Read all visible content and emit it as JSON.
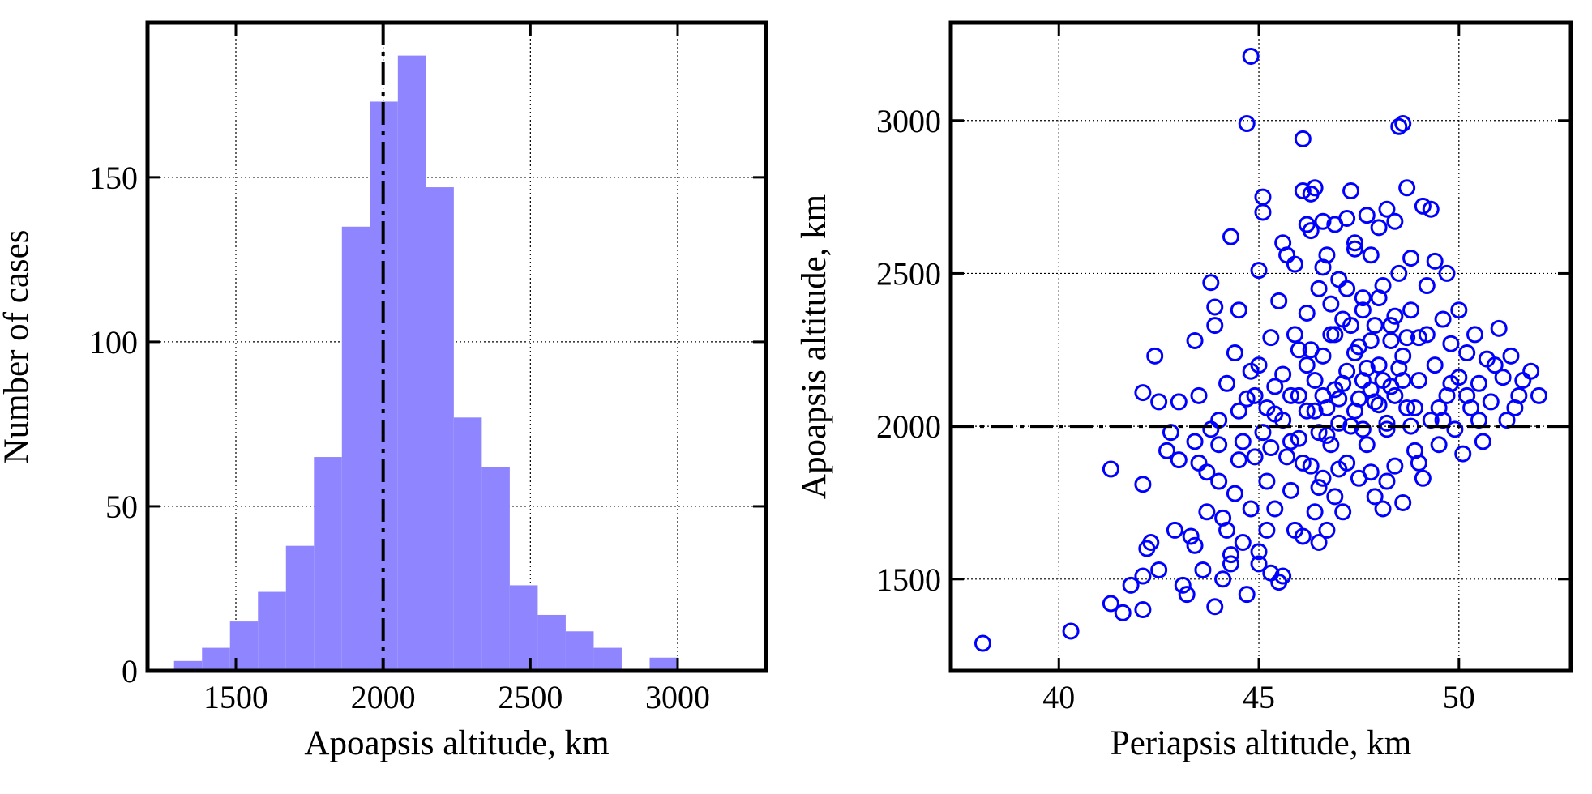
{
  "chart_data": [
    {
      "type": "bar",
      "subtype": "histogram",
      "xlabel": "Apoapsis altitude, km",
      "ylabel": "Number of cases",
      "xlim": [
        1200,
        3300
      ],
      "ylim": [
        0,
        197
      ],
      "xticks": [
        1500,
        2000,
        2500,
        3000
      ],
      "yticks": [
        0,
        50,
        100,
        150
      ],
      "grid": true,
      "bar_color": "#8f86ff",
      "reference_line": {
        "axis": "x",
        "value": 2000,
        "style": "dash-dot",
        "color": "#000000"
      },
      "bins": [
        {
          "x0": 1290,
          "x1": 1385,
          "count": 3
        },
        {
          "x0": 1385,
          "x1": 1480,
          "count": 7
        },
        {
          "x0": 1480,
          "x1": 1575,
          "count": 15
        },
        {
          "x0": 1575,
          "x1": 1670,
          "count": 24
        },
        {
          "x0": 1670,
          "x1": 1765,
          "count": 38
        },
        {
          "x0": 1765,
          "x1": 1860,
          "count": 65
        },
        {
          "x0": 1860,
          "x1": 1955,
          "count": 135
        },
        {
          "x0": 1955,
          "x1": 2050,
          "count": 173
        },
        {
          "x0": 2050,
          "x1": 2145,
          "count": 187
        },
        {
          "x0": 2145,
          "x1": 2240,
          "count": 147
        },
        {
          "x0": 2240,
          "x1": 2335,
          "count": 77
        },
        {
          "x0": 2335,
          "x1": 2430,
          "count": 62
        },
        {
          "x0": 2430,
          "x1": 2525,
          "count": 26
        },
        {
          "x0": 2525,
          "x1": 2620,
          "count": 17
        },
        {
          "x0": 2620,
          "x1": 2715,
          "count": 12
        },
        {
          "x0": 2715,
          "x1": 2810,
          "count": 7
        },
        {
          "x0": 2810,
          "x1": 2905,
          "count": 0
        },
        {
          "x0": 2905,
          "x1": 3000,
          "count": 4
        }
      ]
    },
    {
      "type": "scatter",
      "xlabel": "Periapsis altitude, km",
      "ylabel": "Apoapsis altitude, km",
      "xlim": [
        37.3,
        52.8
      ],
      "ylim": [
        1200,
        3320
      ],
      "xticks": [
        40,
        45,
        50
      ],
      "yticks": [
        1500,
        2000,
        2500,
        3000
      ],
      "grid": true,
      "marker": "open-circle",
      "marker_color": "#0000ff",
      "reference_line": {
        "axis": "y",
        "value": 2000,
        "style": "dash-dot",
        "color": "#000000"
      },
      "points": [
        [
          38.1,
          1290
        ],
        [
          40.3,
          1330
        ],
        [
          41.3,
          1860
        ],
        [
          41.3,
          1420
        ],
        [
          41.6,
          1390
        ],
        [
          41.8,
          1480
        ],
        [
          42.1,
          1400
        ],
        [
          42.1,
          1510
        ],
        [
          42.1,
          1810
        ],
        [
          42.1,
          2110
        ],
        [
          42.2,
          1600
        ],
        [
          42.3,
          1620
        ],
        [
          42.5,
          1530
        ],
        [
          42.4,
          2230
        ],
        [
          42.5,
          2080
        ],
        [
          42.7,
          1920
        ],
        [
          42.8,
          1980
        ],
        [
          42.9,
          1660
        ],
        [
          43.0,
          2080
        ],
        [
          43.0,
          1890
        ],
        [
          43.1,
          1480
        ],
        [
          43.2,
          1450
        ],
        [
          43.3,
          1640
        ],
        [
          43.4,
          1950
        ],
        [
          43.4,
          1610
        ],
        [
          43.4,
          2280
        ],
        [
          43.5,
          1880
        ],
        [
          43.5,
          2100
        ],
        [
          43.6,
          1530
        ],
        [
          43.7,
          1850
        ],
        [
          43.7,
          1720
        ],
        [
          43.8,
          1990
        ],
        [
          43.8,
          2470
        ],
        [
          43.9,
          1410
        ],
        [
          43.9,
          2390
        ],
        [
          43.9,
          2330
        ],
        [
          44.0,
          1940
        ],
        [
          44.0,
          1820
        ],
        [
          44.0,
          2020
        ],
        [
          44.1,
          1700
        ],
        [
          44.1,
          1500
        ],
        [
          44.2,
          1660
        ],
        [
          44.2,
          2140
        ],
        [
          44.3,
          1580
        ],
        [
          44.3,
          1550
        ],
        [
          44.3,
          2620
        ],
        [
          44.4,
          2240
        ],
        [
          44.4,
          1780
        ],
        [
          44.5,
          1890
        ],
        [
          44.5,
          2380
        ],
        [
          44.5,
          2050
        ],
        [
          44.6,
          1620
        ],
        [
          44.6,
          1950
        ],
        [
          44.7,
          1450
        ],
        [
          44.7,
          2990
        ],
        [
          44.8,
          1730
        ],
        [
          44.8,
          2180
        ],
        [
          44.8,
          3210
        ],
        [
          44.9,
          2100
        ],
        [
          45.0,
          1550
        ],
        [
          45.0,
          1590
        ],
        [
          45.0,
          2510
        ],
        [
          45.1,
          2750
        ],
        [
          45.1,
          2700
        ],
        [
          45.1,
          1980
        ],
        [
          45.2,
          1820
        ],
        [
          45.2,
          1660
        ],
        [
          45.3,
          2290
        ],
        [
          45.3,
          1520
        ],
        [
          45.4,
          1730
        ],
        [
          45.4,
          2040
        ],
        [
          45.5,
          1490
        ],
        [
          45.5,
          2410
        ],
        [
          45.6,
          2170
        ],
        [
          45.6,
          2600
        ],
        [
          45.6,
          1510
        ],
        [
          45.7,
          2560
        ],
        [
          45.7,
          1900
        ],
        [
          45.8,
          1790
        ],
        [
          45.8,
          2100
        ],
        [
          45.9,
          2530
        ],
        [
          45.9,
          1660
        ],
        [
          46.0,
          2250
        ],
        [
          46.0,
          1960
        ],
        [
          46.1,
          2940
        ],
        [
          46.1,
          2770
        ],
        [
          46.1,
          1640
        ],
        [
          46.2,
          2660
        ],
        [
          46.2,
          2370
        ],
        [
          46.2,
          2050
        ],
        [
          46.3,
          2760
        ],
        [
          46.3,
          2640
        ],
        [
          46.3,
          1870
        ],
        [
          46.4,
          2780
        ],
        [
          46.4,
          2150
        ],
        [
          46.4,
          1720
        ],
        [
          46.5,
          2450
        ],
        [
          46.5,
          1980
        ],
        [
          46.5,
          1620
        ],
        [
          46.6,
          2670
        ],
        [
          46.6,
          2230
        ],
        [
          46.6,
          1830
        ],
        [
          46.7,
          2560
        ],
        [
          46.7,
          2060
        ],
        [
          46.7,
          1660
        ],
        [
          46.8,
          2300
        ],
        [
          46.8,
          1940
        ],
        [
          46.9,
          2660
        ],
        [
          46.9,
          2120
        ],
        [
          46.9,
          1770
        ],
        [
          47.0,
          2480
        ],
        [
          47.0,
          2010
        ],
        [
          47.1,
          1720
        ],
        [
          47.1,
          2350
        ],
        [
          47.2,
          2680
        ],
        [
          47.2,
          2180
        ],
        [
          47.2,
          1880
        ],
        [
          47.3,
          2770
        ],
        [
          47.3,
          2000
        ],
        [
          47.4,
          2580
        ],
        [
          47.4,
          2240
        ],
        [
          47.5,
          2090
        ],
        [
          47.5,
          1830
        ],
        [
          47.6,
          2420
        ],
        [
          47.6,
          2150
        ],
        [
          47.7,
          2690
        ],
        [
          47.7,
          1940
        ],
        [
          47.8,
          2560
        ],
        [
          47.8,
          2280
        ],
        [
          47.9,
          1770
        ],
        [
          47.9,
          2080
        ],
        [
          48.0,
          2650
        ],
        [
          48.0,
          2200
        ],
        [
          48.1,
          1730
        ],
        [
          48.1,
          2460
        ],
        [
          48.2,
          2710
        ],
        [
          48.2,
          1990
        ],
        [
          48.3,
          2330
        ],
        [
          48.3,
          2130
        ],
        [
          48.4,
          2670
        ],
        [
          48.4,
          1870
        ],
        [
          48.5,
          2980
        ],
        [
          48.5,
          2500
        ],
        [
          48.6,
          2990
        ],
        [
          48.6,
          1750
        ],
        [
          48.6,
          2230
        ],
        [
          48.7,
          2780
        ],
        [
          48.7,
          2060
        ],
        [
          48.8,
          2550
        ],
        [
          48.8,
          2380
        ],
        [
          48.9,
          1920
        ],
        [
          49.0,
          2290
        ],
        [
          49.0,
          2150
        ],
        [
          49.1,
          2720
        ],
        [
          49.1,
          1830
        ],
        [
          49.2,
          2460
        ],
        [
          49.3,
          2710
        ],
        [
          49.3,
          2020
        ],
        [
          49.4,
          2540
        ],
        [
          49.4,
          2200
        ],
        [
          49.5,
          1940
        ],
        [
          49.6,
          2350
        ],
        [
          49.7,
          2500
        ],
        [
          49.7,
          2100
        ],
        [
          49.8,
          2270
        ],
        [
          49.9,
          1990
        ],
        [
          50.0,
          2380
        ],
        [
          50.0,
          2160
        ],
        [
          50.1,
          1910
        ],
        [
          50.2,
          2240
        ],
        [
          50.3,
          2060
        ],
        [
          50.4,
          2300
        ],
        [
          50.5,
          2140
        ],
        [
          50.6,
          1950
        ],
        [
          50.7,
          2220
        ],
        [
          50.8,
          2080
        ],
        [
          51.0,
          2320
        ],
        [
          51.1,
          2160
        ],
        [
          51.2,
          2020
        ],
        [
          51.3,
          2230
        ],
        [
          51.5,
          2100
        ],
        [
          51.6,
          2150
        ],
        [
          51.8,
          2180
        ],
        [
          52.0,
          2100
        ],
        [
          51.4,
          2060
        ],
        [
          50.9,
          2200
        ],
        [
          46.3,
          2250
        ],
        [
          46.6,
          2100
        ],
        [
          46.9,
          2300
        ],
        [
          47.1,
          2140
        ],
        [
          47.3,
          2330
        ],
        [
          47.5,
          2260
        ],
        [
          47.7,
          2190
        ],
        [
          47.9,
          2330
        ],
        [
          48.1,
          2150
        ],
        [
          48.3,
          2280
        ],
        [
          48.5,
          2190
        ],
        [
          48.7,
          2290
        ],
        [
          46.0,
          2100
        ],
        [
          46.4,
          2050
        ],
        [
          46.7,
          1970
        ],
        [
          47.0,
          2090
        ],
        [
          47.4,
          2050
        ],
        [
          47.6,
          1990
        ],
        [
          47.8,
          2120
        ],
        [
          48.0,
          2070
        ],
        [
          48.2,
          2010
        ],
        [
          48.4,
          2100
        ],
        [
          48.6,
          2150
        ],
        [
          48.9,
          2060
        ],
        [
          45.6,
          2020
        ],
        [
          45.8,
          1950
        ],
        [
          46.1,
          1880
        ],
        [
          46.2,
          2200
        ],
        [
          45.4,
          2130
        ],
        [
          45.2,
          2060
        ],
        [
          45.0,
          2200
        ],
        [
          44.9,
          1900
        ],
        [
          46.8,
          2400
        ],
        [
          47.2,
          2450
        ],
        [
          47.6,
          2380
        ],
        [
          48.0,
          2420
        ],
        [
          48.4,
          2360
        ],
        [
          49.2,
          2300
        ],
        [
          49.5,
          2060
        ],
        [
          49.8,
          2140
        ],
        [
          50.2,
          2100
        ],
        [
          50.5,
          2020
        ],
        [
          47.0,
          1860
        ],
        [
          46.5,
          1800
        ],
        [
          47.8,
          1850
        ],
        [
          48.2,
          1820
        ],
        [
          45.9,
          2300
        ],
        [
          46.6,
          2520
        ],
        [
          47.4,
          2600
        ],
        [
          48.8,
          2000
        ],
        [
          49.0,
          1880
        ],
        [
          49.6,
          2020
        ],
        [
          44.7,
          2090
        ],
        [
          45.3,
          1930
        ]
      ]
    }
  ]
}
